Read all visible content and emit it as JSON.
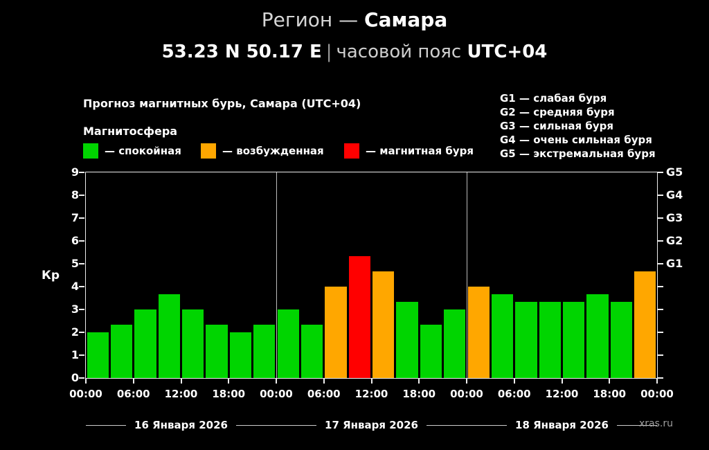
{
  "header": {
    "region_label": "Регион — ",
    "region_value": "Самара",
    "coords": "53.23 N 50.17 E",
    "separator": "|",
    "timezone_label": "часовой пояс ",
    "timezone_value": "UTC+04"
  },
  "chart_header": {
    "title": "Прогноз магнитных бурь, Самара (UTC+04)",
    "magnetosphere_label": "Магнитосфера",
    "legend": [
      {
        "name": "quiet",
        "label": "— спокойная",
        "color": "#00d500"
      },
      {
        "name": "active",
        "label": "— возбужденная",
        "color": "#ffa700"
      },
      {
        "name": "storm",
        "label": "— магнитная буря",
        "color": "#ff0000"
      }
    ],
    "g_legend": [
      "G1 — слабая буря",
      "G2 — средняя буря",
      "G3 — сильная буря",
      "G4 — очень сильная буря",
      "G5 — экстремальная буря"
    ]
  },
  "chart_data": {
    "type": "bar",
    "title": "Прогноз магнитных бурь, Самара (UTC+04)",
    "ylabel": "Кр",
    "ylim": [
      0,
      9
    ],
    "y_ticks": [
      0,
      1,
      2,
      3,
      4,
      5,
      6,
      7,
      8,
      9
    ],
    "right_axis": [
      {
        "label": "G1",
        "kp": 5
      },
      {
        "label": "G2",
        "kp": 6
      },
      {
        "label": "G3",
        "kp": 7
      },
      {
        "label": "G4",
        "kp": 8
      },
      {
        "label": "G5",
        "kp": 9
      }
    ],
    "x_tick_labels": [
      "00:00",
      "06:00",
      "12:00",
      "18:00",
      "00:00",
      "06:00",
      "12:00",
      "18:00",
      "00:00",
      "06:00",
      "12:00",
      "18:00",
      "00:00"
    ],
    "bar_interval_hours": 3,
    "series": [
      {
        "date": "16 Января 2026",
        "kp": [
          2.0,
          2.33,
          3.0,
          3.67,
          3.0,
          2.33,
          2.0,
          2.33
        ]
      },
      {
        "date": "17 Января 2026",
        "kp": [
          3.0,
          2.33,
          4.0,
          5.33,
          4.67,
          3.33,
          2.33,
          3.0
        ]
      },
      {
        "date": "18 Января 2026",
        "kp": [
          4.0,
          3.67,
          3.33,
          3.33,
          3.33,
          3.67,
          3.33,
          4.67
        ]
      }
    ],
    "color_rules": {
      "active_from": 4,
      "storm_from": 5
    },
    "colors": {
      "quiet": "#00d500",
      "active": "#ffa700",
      "storm": "#ff0000"
    },
    "grid": "day-separators-only",
    "legend_position": "top"
  },
  "footer": {
    "watermark": "xras.ru"
  }
}
